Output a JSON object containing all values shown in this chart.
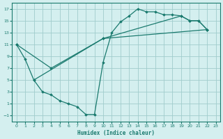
{
  "xlabel": "Humidex (Indice chaleur)",
  "xlim": [
    -0.5,
    23.5
  ],
  "ylim": [
    -2,
    18
  ],
  "xticks": [
    0,
    1,
    2,
    3,
    4,
    5,
    6,
    7,
    8,
    9,
    10,
    11,
    12,
    13,
    14,
    15,
    16,
    17,
    18,
    19,
    20,
    21,
    22,
    23
  ],
  "yticks": [
    -1,
    1,
    3,
    5,
    7,
    9,
    11,
    13,
    15,
    17
  ],
  "color": "#1a7a6e",
  "bg_color": "#d4efef",
  "grid_color": "#a0cccc",
  "line_series": [
    {
      "x": [
        0,
        1,
        2,
        3,
        4,
        5,
        6,
        7,
        8,
        9,
        10,
        11,
        12,
        13,
        14,
        15,
        16,
        17,
        18,
        19,
        20,
        21,
        22
      ],
      "y": [
        11,
        8.5,
        5,
        3,
        2.5,
        1.5,
        1.0,
        0.5,
        -0.8,
        -0.8,
        8.0,
        13.0,
        14.8,
        15.8,
        17.0,
        16.5,
        16.5,
        16.0,
        16.0,
        15.8,
        15.0,
        15.0,
        13.5
      ]
    },
    {
      "x": [
        0,
        4,
        10,
        22
      ],
      "y": [
        11,
        7.0,
        12.0,
        13.5
      ]
    },
    {
      "x": [
        2,
        10,
        19,
        20,
        21,
        22
      ],
      "y": [
        5,
        12.0,
        15.8,
        15.0,
        15.0,
        13.5
      ]
    }
  ]
}
